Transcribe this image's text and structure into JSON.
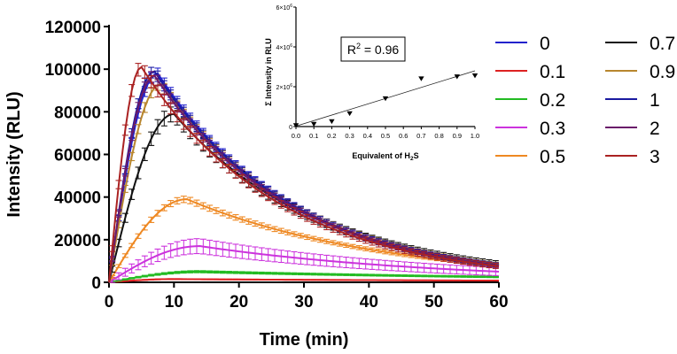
{
  "chart_data": [
    {
      "type": "line",
      "xlabel": "Time (min)",
      "ylabel": "Intensity (RLU)",
      "xlim": [
        0,
        60
      ],
      "ylim": [
        0,
        120000
      ],
      "xticks": [
        0,
        10,
        20,
        30,
        40,
        50,
        60
      ],
      "yticks": [
        0,
        20000,
        40000,
        60000,
        80000,
        100000,
        120000
      ],
      "xtick_labels": [
        "0",
        "10",
        "20",
        "30",
        "40",
        "50",
        "60"
      ],
      "ytick_labels": [
        "0",
        "20000",
        "40000",
        "60000",
        "80000",
        "100000",
        "120000"
      ],
      "legend_position": "right",
      "series": [
        {
          "name": "0",
          "label": "0",
          "color": "#2222cc",
          "peak": 98000,
          "peak_time": 7.5,
          "end_value": 8000,
          "error": 2500
        },
        {
          "name": "0.1",
          "label": "0.1",
          "color": "#dd2222",
          "peak": 1500,
          "peak_time": 10,
          "end_value": 800,
          "error": 200
        },
        {
          "name": "0.2",
          "label": "0.2",
          "color": "#22bb22",
          "peak": 5000,
          "peak_time": 14,
          "end_value": 2500,
          "error": 500
        },
        {
          "name": "0.3",
          "label": "0.3",
          "color": "#cc33dd",
          "peak": 17000,
          "peak_time": 14,
          "end_value": 5000,
          "error": 3500
        },
        {
          "name": "0.5",
          "label": "0.5",
          "color": "#ee8822",
          "peak": 39000,
          "peak_time": 12,
          "end_value": 8000,
          "error": 1500
        },
        {
          "name": "0.7",
          "label": "0.7",
          "color": "#111111",
          "peak": 79000,
          "peak_time": 10,
          "end_value": 8500,
          "error": 3500
        },
        {
          "name": "0.9",
          "label": "0.9",
          "color": "#b8862e",
          "peak": 93000,
          "peak_time": 8,
          "end_value": 8200,
          "error": 2500
        },
        {
          "name": "1",
          "label": "1",
          "color": "#1a1aa0",
          "peak": 99000,
          "peak_time": 7,
          "end_value": 8000,
          "error": 2500
        },
        {
          "name": "2",
          "label": "2",
          "color": "#6a1a6a",
          "peak": 97000,
          "peak_time": 7,
          "end_value": 7800,
          "error": 2500
        },
        {
          "name": "3",
          "label": "3",
          "color": "#aa2222",
          "peak": 101000,
          "peak_time": 5,
          "end_value": 7500,
          "error": 3000
        }
      ]
    },
    {
      "type": "scatter",
      "xlabel_main": "Equivalent of H",
      "xlabel_sub": "2",
      "xlabel_tail": "S",
      "ylabel": "Σ Intensity in RLU",
      "xlim": [
        0,
        1
      ],
      "ylim": [
        0,
        6000000
      ],
      "xticks": [
        0,
        0.1,
        0.2,
        0.3,
        0.4,
        0.5,
        0.6,
        0.7,
        0.8,
        0.9,
        1.0
      ],
      "xtick_labels": [
        "0.0",
        "0.1",
        "0.2",
        "0.3",
        "0.4",
        "0.5",
        "0.6",
        "0.7",
        "0.8",
        "0.9",
        "1.0"
      ],
      "yticks": [
        0,
        2000000,
        4000000,
        6000000
      ],
      "ytick_mantissa": [
        "0",
        "2×10",
        "4×10",
        "6×10"
      ],
      "ytick_exp": [
        "",
        "6",
        "6",
        "6"
      ],
      "annotation_main": "R",
      "annotation_sup": "2",
      "annotation_tail": " = 0.96",
      "points": [
        {
          "x": 0,
          "y": 50000
        },
        {
          "x": 0.1,
          "y": 120000
        },
        {
          "x": 0.2,
          "y": 250000
        },
        {
          "x": 0.3,
          "y": 650000
        },
        {
          "x": 0.5,
          "y": 1400000
        },
        {
          "x": 0.7,
          "y": 2400000
        },
        {
          "x": 0.9,
          "y": 2500000
        },
        {
          "x": 1.0,
          "y": 2550000
        }
      ],
      "fit_line": {
        "x": [
          0,
          1.0
        ],
        "y": [
          20000,
          2800000
        ]
      }
    }
  ]
}
